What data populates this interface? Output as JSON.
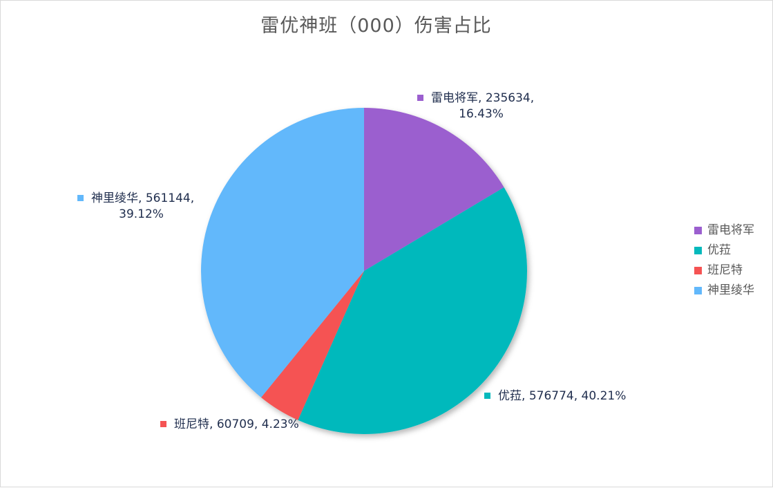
{
  "chart_data": {
    "type": "pie",
    "title": "雷优神班（000）伤害占比",
    "slices": [
      {
        "name": "雷电将军",
        "value": 235634,
        "percent": "16.43%",
        "color": "#9b5fcf"
      },
      {
        "name": "优菈",
        "value": 576774,
        "percent": "40.21%",
        "color": "#05b9bc"
      },
      {
        "name": "班尼特",
        "value": 60709,
        "percent": "4.23%",
        "color": "#f55353"
      },
      {
        "name": "神里绫华",
        "value": 561144,
        "percent": "39.12%",
        "color": "#62b8fb"
      }
    ],
    "legend_position": "right"
  }
}
